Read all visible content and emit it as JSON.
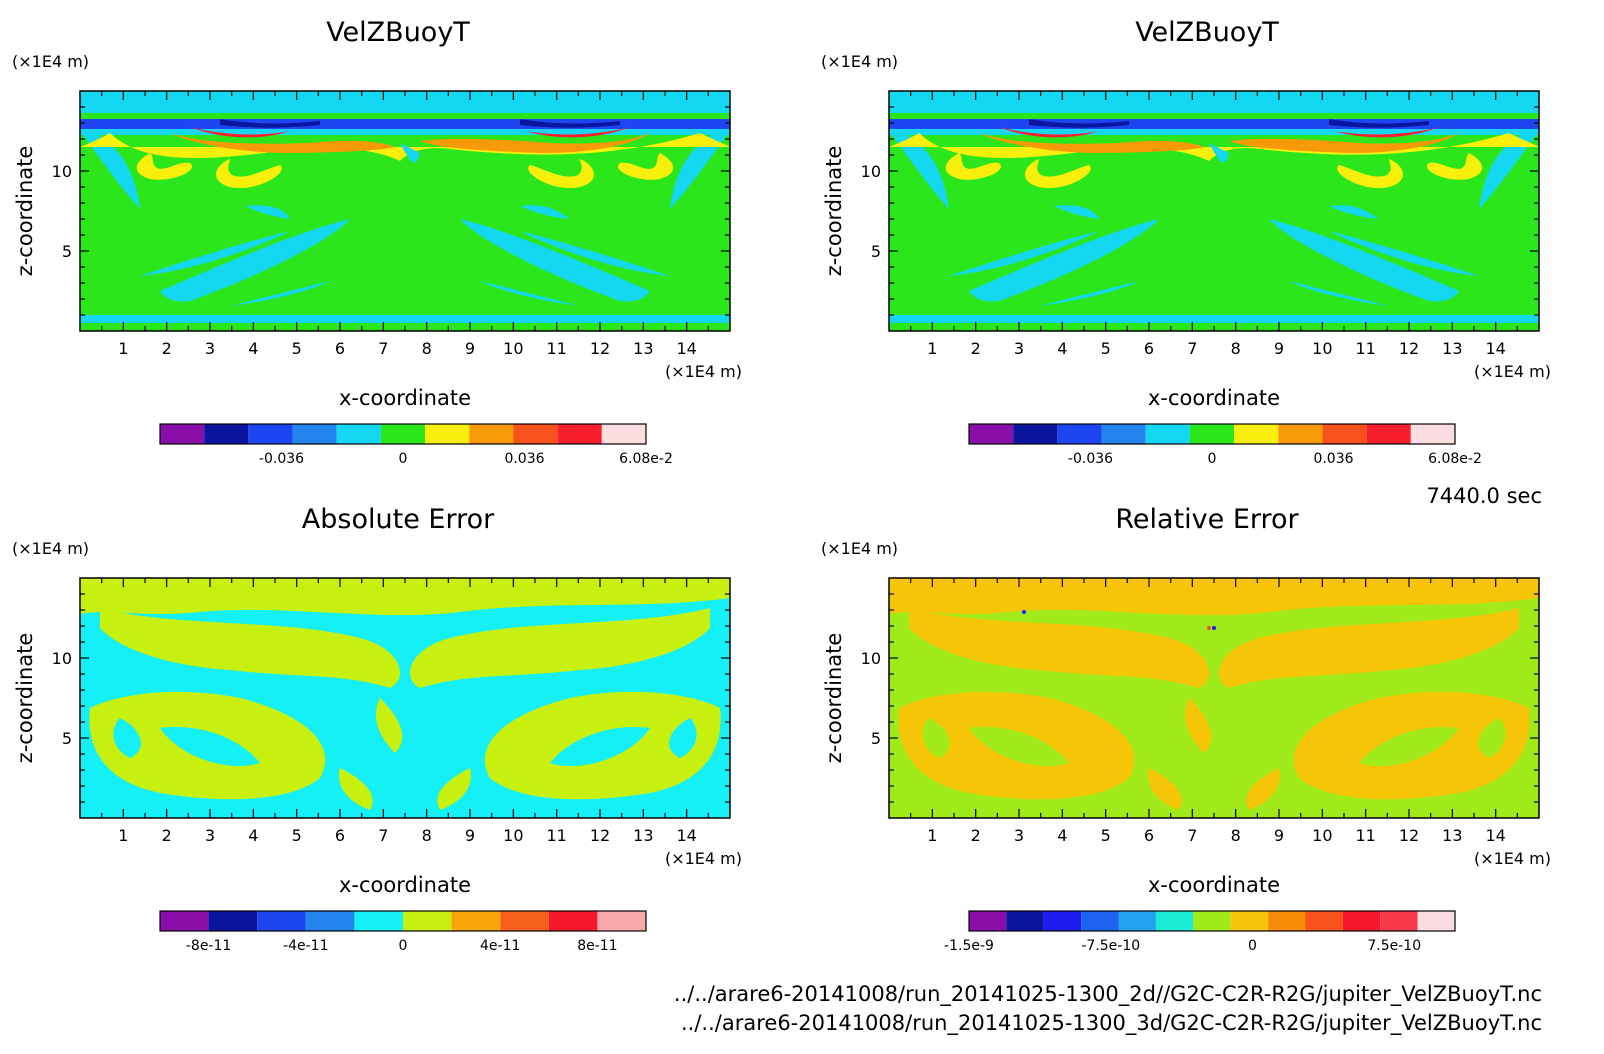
{
  "timestamp": "7440.0 sec",
  "file_paths": [
    "../../arare6-20141008/run_20141025-1300_2d//G2C-C2R-R2G/jupiter_VelZBuoyT.nc",
    "../../arare6-20141008/run_20141025-1300_3d/G2C-C2R-R2G/jupiter_VelZBuoyT.nc"
  ],
  "chart_data": [
    {
      "type": "heatmap",
      "title": "VelZBuoyT",
      "xlabel": "x-coordinate",
      "ylabel": "z-coordinate",
      "x_unit": "(×1E4 m)",
      "y_unit": "(×1E4 m)",
      "xlim": [
        0,
        15
      ],
      "ylim": [
        0,
        15
      ],
      "x_ticks": [
        "1",
        "2",
        "3",
        "4",
        "5",
        "6",
        "7",
        "8",
        "9",
        "10",
        "11",
        "12",
        "13",
        "14"
      ],
      "y_ticks": [
        "5",
        "10"
      ],
      "colorbar": {
        "colors": [
          "#8a0fa8",
          "#0a16a0",
          "#1d46f0",
          "#2384ee",
          "#14d8f2",
          "#2ae61a",
          "#f8ef0c",
          "#f79a07",
          "#f7521b",
          "#f91f2c",
          "#fcdde0"
        ],
        "tick_labels": [
          "-0.036",
          "0",
          "0.036",
          "6.08e-2"
        ]
      }
    },
    {
      "type": "heatmap",
      "title": "VelZBuoyT",
      "xlabel": "x-coordinate",
      "ylabel": "z-coordinate",
      "x_unit": "(×1E4 m)",
      "y_unit": "(×1E4 m)",
      "xlim": [
        0,
        15
      ],
      "ylim": [
        0,
        15
      ],
      "x_ticks": [
        "1",
        "2",
        "3",
        "4",
        "5",
        "6",
        "7",
        "8",
        "9",
        "10",
        "11",
        "12",
        "13",
        "14"
      ],
      "y_ticks": [
        "5",
        "10"
      ],
      "colorbar": {
        "colors": [
          "#8a0fa8",
          "#0a16a0",
          "#1d46f0",
          "#2384ee",
          "#14d8f2",
          "#2ae61a",
          "#f8ef0c",
          "#f79a07",
          "#f7521b",
          "#f91f2c",
          "#fcdde0"
        ],
        "tick_labels": [
          "-0.036",
          "0",
          "0.036",
          "6.08e-2"
        ]
      }
    },
    {
      "type": "heatmap",
      "title": "Absolute Error",
      "xlabel": "x-coordinate",
      "ylabel": "z-coordinate",
      "x_unit": "(×1E4 m)",
      "y_unit": "(×1E4 m)",
      "xlim": [
        0,
        15
      ],
      "ylim": [
        0,
        15
      ],
      "x_ticks": [
        "1",
        "2",
        "3",
        "4",
        "5",
        "6",
        "7",
        "8",
        "9",
        "10",
        "11",
        "12",
        "13",
        "14"
      ],
      "y_ticks": [
        "5",
        "10"
      ],
      "colorbar": {
        "colors": [
          "#8a0fa8",
          "#0a16a0",
          "#1d46f0",
          "#2384ee",
          "#14f0f5",
          "#c8f00f",
          "#f7a507",
          "#f7601b",
          "#f5172a",
          "#f9a9ac"
        ],
        "tick_labels": [
          "-8e-11",
          "-4e-11",
          "0",
          "4e-11",
          "8e-11"
        ]
      }
    },
    {
      "type": "heatmap",
      "title": "Relative Error",
      "xlabel": "x-coordinate",
      "ylabel": "z-coordinate",
      "x_unit": "(×1E4 m)",
      "y_unit": "(×1E4 m)",
      "xlim": [
        0,
        15
      ],
      "ylim": [
        0,
        15
      ],
      "x_ticks": [
        "1",
        "2",
        "3",
        "4",
        "5",
        "6",
        "7",
        "8",
        "9",
        "10",
        "11",
        "12",
        "13",
        "14"
      ],
      "y_ticks": [
        "5",
        "10"
      ],
      "colorbar": {
        "colors": [
          "#8a0fa8",
          "#0a16a0",
          "#1d1df0",
          "#1d62f0",
          "#23a2ee",
          "#1bebd2",
          "#a0ea1a",
          "#f7c507",
          "#f78a07",
          "#f7521b",
          "#f5172a",
          "#f93a4a",
          "#fcdde0"
        ],
        "tick_labels": [
          "-1.5e-9",
          "-7.5e-10",
          "0",
          "7.5e-10"
        ]
      }
    }
  ]
}
